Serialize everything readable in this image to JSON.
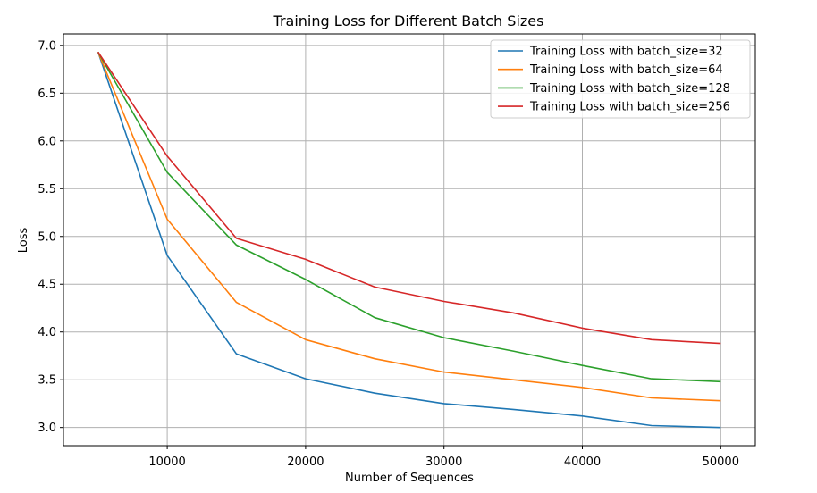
{
  "chart_data": {
    "type": "line",
    "title": "Training Loss for Different Batch Sizes",
    "xlabel": "Number of Sequences",
    "ylabel": "Loss",
    "xlim": [
      2500,
      52500
    ],
    "ylim": [
      2.81,
      7.12
    ],
    "xticks": [
      10000,
      20000,
      30000,
      40000,
      50000
    ],
    "yticks": [
      3.0,
      3.5,
      4.0,
      4.5,
      5.0,
      5.5,
      6.0,
      6.5,
      7.0
    ],
    "grid": true,
    "legend_position": "top-right",
    "x": [
      5000,
      10000,
      15000,
      20000,
      25000,
      30000,
      35000,
      40000,
      45000,
      50000
    ],
    "series": [
      {
        "name": "Training Loss with batch_size=32",
        "color": "#1f77b4",
        "values": [
          6.93,
          4.8,
          3.77,
          3.51,
          3.36,
          3.25,
          3.19,
          3.12,
          3.02,
          3.0
        ]
      },
      {
        "name": "Training Loss with batch_size=64",
        "color": "#ff7f0e",
        "values": [
          6.93,
          5.18,
          4.31,
          3.92,
          3.72,
          3.58,
          3.5,
          3.42,
          3.31,
          3.28
        ]
      },
      {
        "name": "Training Loss with batch_size=128",
        "color": "#2ca02c",
        "values": [
          6.93,
          5.67,
          4.91,
          4.55,
          4.15,
          3.94,
          3.8,
          3.65,
          3.51,
          3.48
        ]
      },
      {
        "name": "Training Loss with batch_size=256",
        "color": "#d62728",
        "values": [
          6.93,
          5.84,
          4.98,
          4.76,
          4.47,
          4.32,
          4.2,
          4.04,
          3.92,
          3.88
        ]
      }
    ]
  }
}
